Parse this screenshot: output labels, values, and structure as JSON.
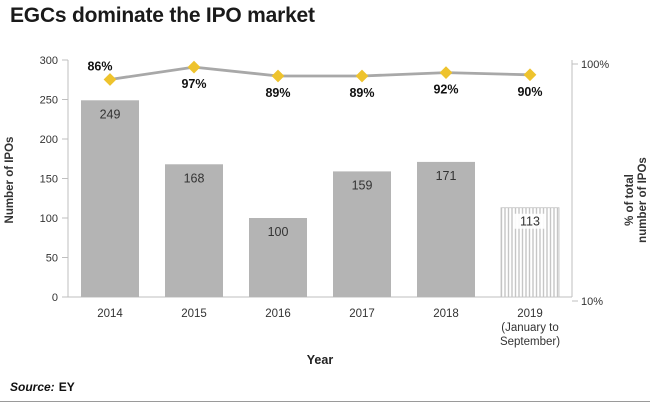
{
  "title": "EGCs dominate the IPO market",
  "footer": {
    "source_prefix": "Source:",
    "source_value": "EY"
  },
  "chart_data": {
    "type": "bar+line",
    "title": "EGCs dominate the IPO market",
    "categories": [
      [
        "2014"
      ],
      [
        "2015"
      ],
      [
        "2016"
      ],
      [
        "2017"
      ],
      [
        "2018"
      ],
      [
        "2019",
        "(January to",
        "September)"
      ]
    ],
    "series": [
      {
        "name": "Number of IPOs",
        "type": "bar",
        "values": [
          249,
          168,
          100,
          159,
          171,
          113
        ]
      },
      {
        "name": "% of total number of IPOs",
        "type": "line",
        "values": [
          86,
          97,
          89,
          89,
          92,
          90
        ],
        "label_positions": [
          "above",
          "below",
          "below",
          "below",
          "below",
          "below"
        ]
      }
    ],
    "xlabel": "Year",
    "ylabel_left": "Number of IPOs",
    "ylabel_right_lines": [
      "% of total",
      "number of IPOs"
    ],
    "y_left": {
      "min": 0,
      "max": 300,
      "ticks": [
        0,
        50,
        100,
        150,
        200,
        250,
        300
      ]
    },
    "y_right": {
      "scale": "log",
      "min": 10,
      "max": 100,
      "tick_labels": [
        "100%",
        "10%"
      ]
    },
    "grid": false,
    "legend": "none",
    "last_bar_hatched": true,
    "colors": {
      "bar": "#b4b4b4",
      "hatch_stroke": "#c6c6c6",
      "line": "#a8a8a8",
      "marker": "#eec32d",
      "axis": "#bfbfbf",
      "text": "#333333",
      "title": "#1a1a1a"
    }
  }
}
